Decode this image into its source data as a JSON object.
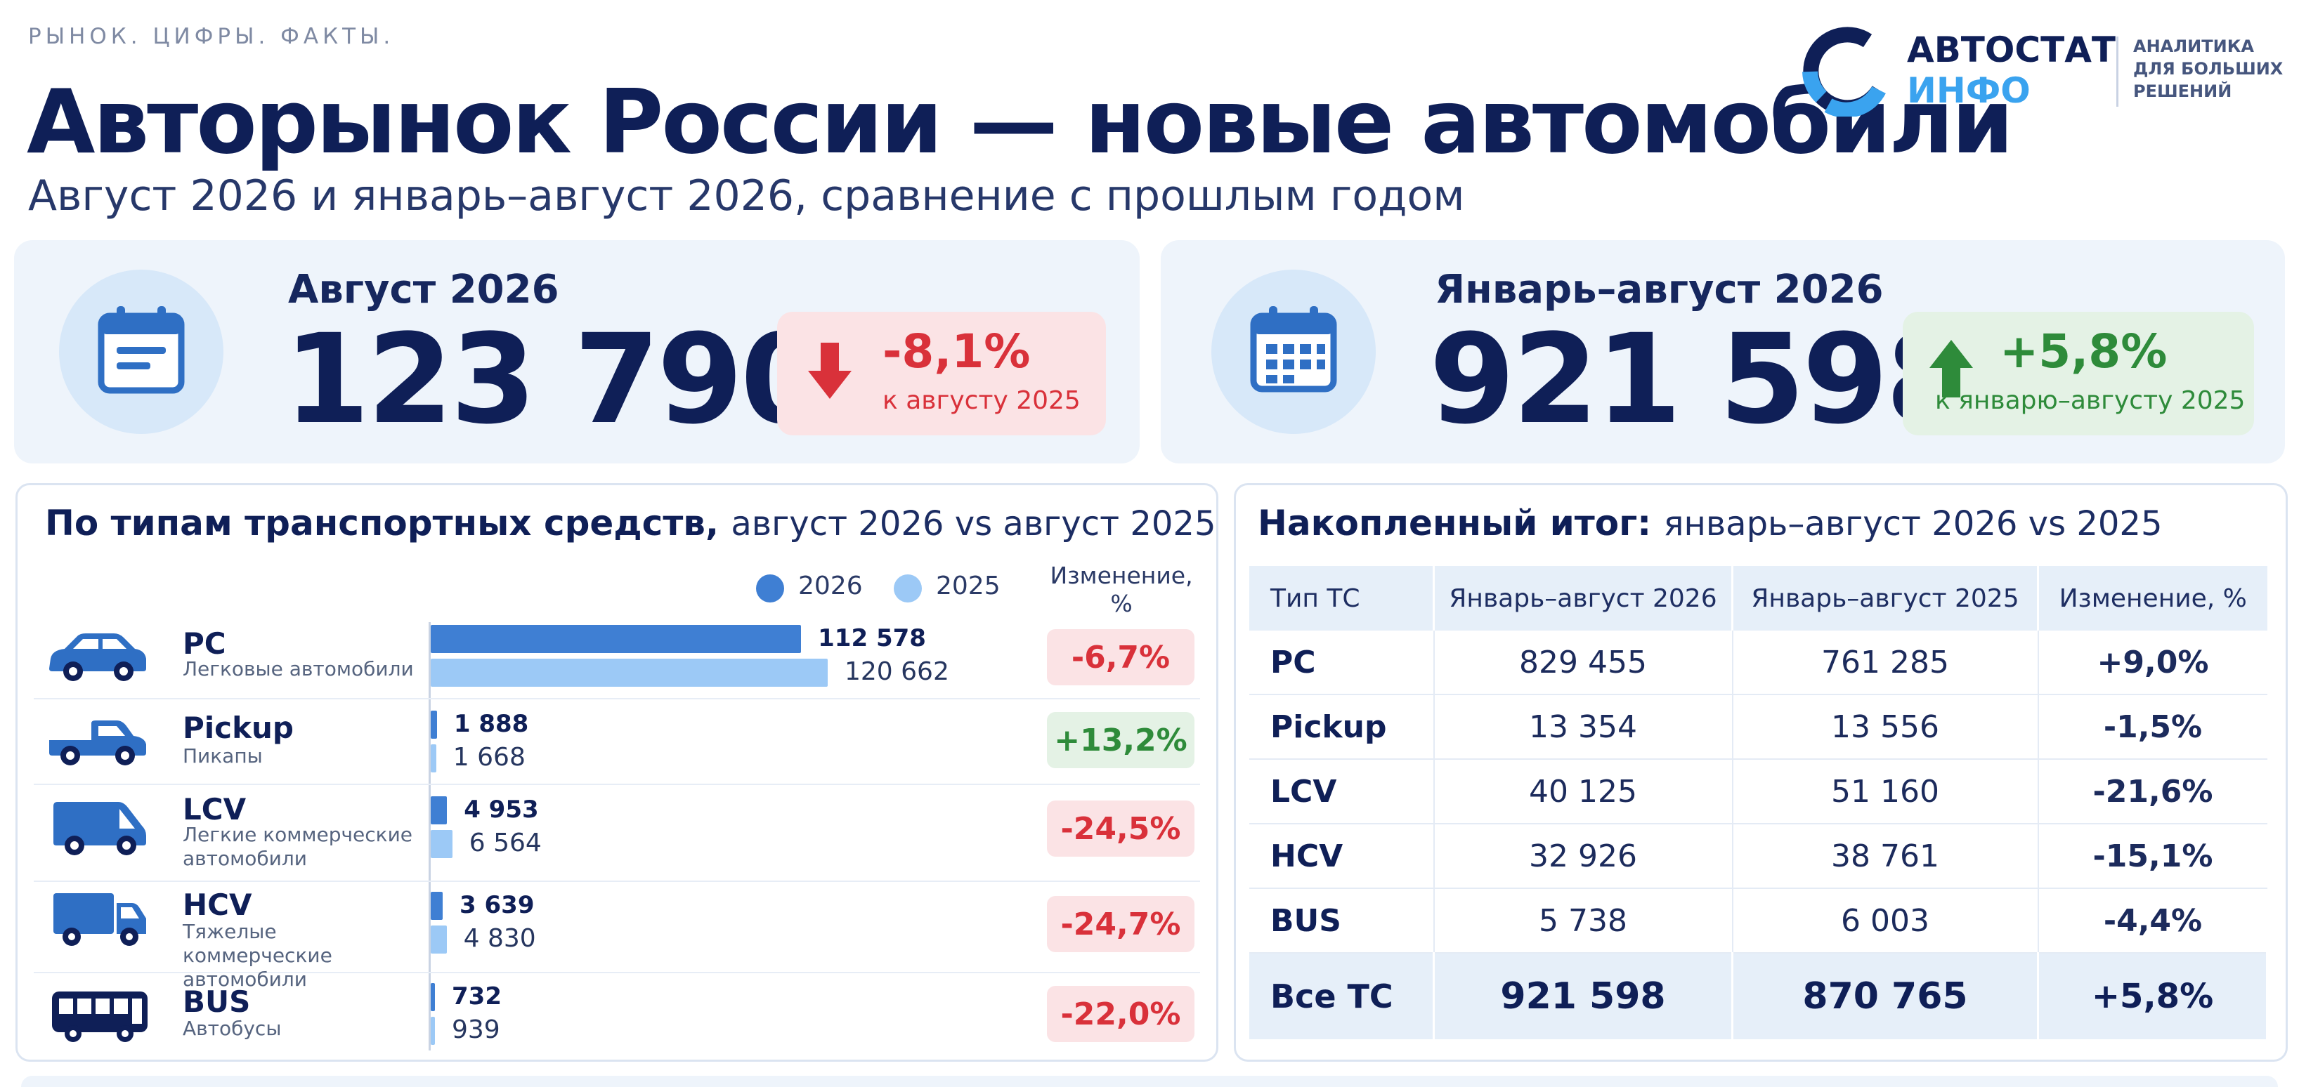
{
  "header": {
    "tagline": "РЫНОК. ЦИФРЫ. ФАКТЫ.",
    "title": "Авторынок России — новые автомобили",
    "subtitle": "Август 2026 и январь–август 2026, сравнение с прошлым годом"
  },
  "logo": {
    "name": "АВТОСТАТ",
    "sub": "ИНФО",
    "tag_lines": [
      "АНАЛИТИКА",
      "ДЛЯ БОЛЬШИХ",
      "РЕШЕНИЙ"
    ]
  },
  "kpis": [
    {
      "label": "Август 2026",
      "value": "123 790",
      "change": "-8,1%",
      "change_note": "к августу 2025",
      "direction": "down",
      "icon": "calendar-icon"
    },
    {
      "label": "Январь–август 2026",
      "value": "921 598",
      "change": "+5,8%",
      "change_note": "к январю–августу 2025",
      "direction": "up",
      "icon": "calendar-grid-icon"
    }
  ],
  "by_type": {
    "title_bold": "По типам транспортных средств,",
    "title_rest": "август 2026 vs август 2025",
    "legend": [
      "2026",
      "2025"
    ],
    "change_header": [
      "Изменение,",
      "%"
    ]
  },
  "cumulative": {
    "title_bold": "Накопленный итог:",
    "title_rest": "январь–август 2026 vs 2025",
    "columns": [
      "Тип ТС",
      "Январь–август 2026",
      "Январь–август 2025",
      "Изменение, %"
    ],
    "rows": [
      {
        "code": "PC",
        "y2026": "829 455",
        "y2025": "761 285",
        "change": "+9,0%",
        "dir": "pos"
      },
      {
        "code": "Pickup",
        "y2026": "13 354",
        "y2025": "13 556",
        "change": "-1,5%",
        "dir": "neg"
      },
      {
        "code": "LCV",
        "y2026": "40 125",
        "y2025": "51 160",
        "change": "-21,6%",
        "dir": "neg"
      },
      {
        "code": "HCV",
        "y2026": "32 926",
        "y2025": "38 761",
        "change": "-15,1%",
        "dir": "neg"
      },
      {
        "code": "BUS",
        "y2026": "5 738",
        "y2025": "6 003",
        "change": "-4,4%",
        "dir": "neg"
      }
    ],
    "total": {
      "code": "Все ТС",
      "y2026": "921 598",
      "y2025": "870 765",
      "change": "+5,8%",
      "dir": "pos"
    }
  },
  "colors": {
    "bar_2026": "#3f7fd3",
    "bar_2025": "#9cc9f6",
    "negative": "#d9313a",
    "positive": "#2e8b3a",
    "navy": "#0f1f57",
    "accent": "#3aa3ef"
  },
  "chart_data": {
    "type": "bar",
    "orientation": "horizontal",
    "categories": [
      "PC",
      "Pickup",
      "LCV",
      "HCV",
      "BUS"
    ],
    "category_descriptions": [
      "Легковые автомобили",
      "Пикапы",
      "Легкие коммерческие автомобили",
      "Тяжелые коммерческие автомобили",
      "Автобусы"
    ],
    "category_icons": [
      "car-icon",
      "pickup-icon",
      "van-icon",
      "truck-icon",
      "bus-icon"
    ],
    "series": [
      {
        "name": "2026",
        "values": [
          112578,
          1888,
          4953,
          3639,
          732
        ],
        "labels": [
          "112 578",
          "1 888",
          "4 953",
          "3 639",
          "732"
        ]
      },
      {
        "name": "2025",
        "values": [
          120662,
          1668,
          6564,
          4830,
          939
        ],
        "labels": [
          "120 662",
          "1 668",
          "6 564",
          "4 830",
          "939"
        ]
      }
    ],
    "changes": [
      "-6,7%",
      "+13,2%",
      "-24,5%",
      "-24,7%",
      "-22,0%"
    ],
    "change_dirs": [
      "neg",
      "pos",
      "neg",
      "neg",
      "neg"
    ],
    "xlim": [
      0,
      120662
    ],
    "grid": false,
    "legend_position": "top-right"
  }
}
